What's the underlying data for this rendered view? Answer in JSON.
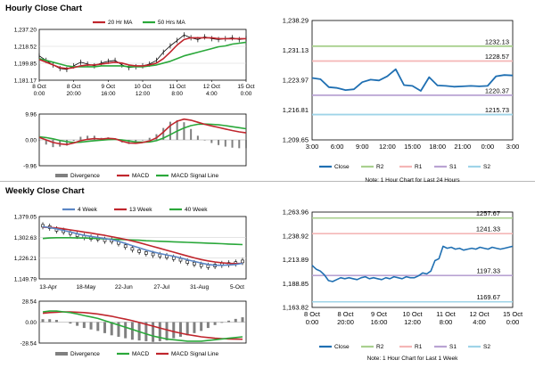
{
  "sections": {
    "hourly_title": "Hourly Close Chart",
    "weekly_title": "Weekly Close Chart"
  },
  "colors": {
    "ma_short": "#c0262d",
    "ma_long": "#2aa83a",
    "close": "#1f6fb2",
    "r2": "#a9d08e",
    "r1": "#f4b6b6",
    "s1": "#b9a3d3",
    "s2": "#9fd4e8",
    "divergence": "#808080",
    "wk_4": "#5b86c5",
    "grid": "#d4d4d4",
    "axis": "#000000"
  },
  "chart_data": [
    {
      "id": "hourly_price",
      "type": "line",
      "title": "Hourly Close Chart",
      "legend": [
        "20 Hr MA",
        "50 Hrs MA"
      ],
      "y_ticks": [
        "1,237.20",
        "1,218.52",
        "1,199.85",
        "1,181.17"
      ],
      "ylim": [
        1181.17,
        1237.2
      ],
      "x_labels": [
        [
          "8 Oct",
          "0:00"
        ],
        [
          "8 Oct",
          "20:00"
        ],
        [
          "9 Oct",
          "16:00"
        ],
        [
          "10 Oct",
          "12:00"
        ],
        [
          "11 Oct",
          "8:00"
        ],
        [
          "12 Oct",
          "4:00"
        ],
        [
          "15 Oct",
          "0:00"
        ]
      ],
      "x": [
        0,
        4,
        8,
        12,
        16,
        20,
        24,
        28,
        32,
        36,
        40,
        44,
        48,
        52,
        56,
        60,
        64,
        68,
        72,
        76,
        80,
        84,
        88,
        92,
        96,
        100,
        104,
        108,
        112,
        116,
        120
      ],
      "close": [
        1208,
        1203,
        1198,
        1194,
        1193,
        1197,
        1201,
        1199,
        1197,
        1200,
        1202,
        1203,
        1198,
        1195,
        1196,
        1197,
        1199,
        1203,
        1212,
        1219,
        1225,
        1231,
        1228,
        1226,
        1229,
        1227,
        1226,
        1227,
        1228,
        1226,
        1227
      ],
      "ma20": [
        1204,
        1201,
        1198,
        1195,
        1194,
        1195,
        1197,
        1198,
        1198,
        1199,
        1200,
        1201,
        1200,
        1198,
        1197,
        1197,
        1198,
        1200,
        1205,
        1212,
        1220,
        1226,
        1228,
        1228,
        1228,
        1228,
        1227,
        1227,
        1227,
        1227,
        1227
      ],
      "ma50": [
        1205,
        1203,
        1201,
        1199,
        1197,
        1196,
        1196,
        1196,
        1196,
        1197,
        1197,
        1197,
        1197,
        1196,
        1196,
        1196,
        1197,
        1198,
        1200,
        1202,
        1205,
        1208,
        1210,
        1212,
        1214,
        1216,
        1218,
        1219,
        1221,
        1222,
        1223
      ]
    },
    {
      "id": "hourly_macd",
      "type": "line",
      "legend": [
        "Divergence",
        "MACD",
        "MACD Signal Line"
      ],
      "y_ticks": [
        "9.96",
        "0.00",
        "-9.96"
      ],
      "ylim": [
        -9.96,
        9.96
      ],
      "x": [
        0,
        4,
        8,
        12,
        16,
        20,
        24,
        28,
        32,
        36,
        40,
        44,
        48,
        52,
        56,
        60,
        64,
        68,
        72,
        76,
        80,
        84,
        88,
        92,
        96,
        100,
        104,
        108,
        112,
        116,
        120
      ],
      "macd": [
        1,
        0,
        -1,
        -1.5,
        -1.8,
        -1.2,
        -0.3,
        0.2,
        0.5,
        0.3,
        0.6,
        0.4,
        -0.5,
        -1.2,
        -1.3,
        -1,
        -0.4,
        0.8,
        3,
        5.5,
        7.2,
        8,
        7.6,
        6.8,
        6,
        5.4,
        4.8,
        4.2,
        3.6,
        3.1,
        2.7
      ],
      "signal": [
        1.2,
        0.9,
        0.4,
        -0.2,
        -0.7,
        -1,
        -0.9,
        -0.6,
        -0.3,
        -0.1,
        0.1,
        0.2,
        0,
        -0.4,
        -0.8,
        -0.9,
        -0.8,
        -0.3,
        0.7,
        2,
        3.4,
        4.6,
        5.5,
        6,
        6.1,
        6,
        5.8,
        5.5,
        5.1,
        4.7,
        4.3
      ]
    },
    {
      "id": "hourly_pivots",
      "type": "line",
      "y_ticks": [
        "1,238.29",
        "1,231.13",
        "1,223.97",
        "1,216.81",
        "1,209.65"
      ],
      "ylim": [
        1209.65,
        1238.29
      ],
      "x_ticks": [
        "3:00",
        "6:00",
        "9:00",
        "12:00",
        "15:00",
        "18:00",
        "21:00",
        "0:00",
        "3:00"
      ],
      "levels": [
        {
          "name": "R2",
          "value": 1232.13,
          "label": "1232.13"
        },
        {
          "name": "R1",
          "value": 1228.57,
          "label": "1228.57"
        },
        {
          "name": "S1",
          "value": 1220.37,
          "label": "1220.37"
        },
        {
          "name": "S2",
          "value": 1215.73,
          "label": "1215.73"
        }
      ],
      "close": [
        1224.5,
        1224.2,
        1222.3,
        1222.1,
        1221.6,
        1221.8,
        1223.5,
        1224.1,
        1223.9,
        1224.9,
        1226.6,
        1222.8,
        1222.6,
        1221.4,
        1224.7,
        1222.7,
        1222.6,
        1222.4,
        1222.5,
        1222.6,
        1222.5,
        1222.6,
        1224.9,
        1225.2,
        1225.1
      ],
      "legend": [
        "Close",
        "R2",
        "R1",
        "S1",
        "S2"
      ],
      "note": "Note: 1 Hour Chart for Last 24 Hours"
    },
    {
      "id": "weekly_price",
      "type": "line",
      "title": "Weekly Close Chart",
      "legend": [
        "4 Week",
        "13 Week",
        "40 Week"
      ],
      "y_ticks": [
        "1,379.05",
        "1,302.63",
        "1,226.21",
        "1,149.79"
      ],
      "ylim": [
        1149.79,
        1379.05
      ],
      "x_ticks": [
        "13-Apr",
        "18-May",
        "22-Jun",
        "27-Jul",
        "31-Aug",
        "5-Oct"
      ],
      "close": [
        1345,
        1340,
        1330,
        1325,
        1318,
        1310,
        1305,
        1300,
        1298,
        1292,
        1290,
        1282,
        1270,
        1260,
        1252,
        1245,
        1240,
        1236,
        1232,
        1226,
        1220,
        1212,
        1206,
        1200,
        1196,
        1199,
        1203,
        1205,
        1208,
        1214
      ],
      "wk4": [
        1342,
        1338,
        1334,
        1328,
        1322,
        1316,
        1310,
        1306,
        1302,
        1298,
        1294,
        1288,
        1280,
        1272,
        1264,
        1256,
        1249,
        1243,
        1238,
        1233,
        1227,
        1220,
        1214,
        1208,
        1203,
        1200,
        1200,
        1201,
        1203,
        1207
      ],
      "wk13": [
        1340,
        1339,
        1337,
        1334,
        1330,
        1326,
        1322,
        1318,
        1314,
        1310,
        1305,
        1300,
        1295,
        1289,
        1283,
        1276,
        1269,
        1262,
        1255,
        1248,
        1241,
        1234,
        1227,
        1221,
        1216,
        1212,
        1209,
        1207,
        1206,
        1207
      ],
      "wk40": [
        1298,
        1300,
        1301,
        1301,
        1301,
        1300,
        1300,
        1299,
        1298,
        1297,
        1296,
        1295,
        1294,
        1293,
        1292,
        1290,
        1289,
        1288,
        1287,
        1286,
        1285,
        1284,
        1283,
        1282,
        1281,
        1280,
        1279,
        1278,
        1277,
        1276
      ]
    },
    {
      "id": "weekly_macd",
      "type": "line",
      "legend": [
        "Divergence",
        "MACD",
        "MACD Signal Line"
      ],
      "y_ticks": [
        "28.54",
        "0.00",
        "-28.54"
      ],
      "ylim": [
        -28.54,
        28.54
      ],
      "macd": [
        14,
        15,
        15,
        14,
        13,
        11,
        9,
        7,
        5,
        2,
        -1,
        -4,
        -7,
        -10,
        -13,
        -16,
        -19,
        -21,
        -23,
        -24,
        -25,
        -26,
        -26,
        -26,
        -25,
        -24,
        -23,
        -22,
        -21,
        -20
      ],
      "signal": [
        12,
        13,
        13.5,
        14,
        14,
        13.5,
        13,
        12,
        11,
        9.5,
        8,
        6,
        4,
        2,
        -0.5,
        -3,
        -5.5,
        -8,
        -10.5,
        -13,
        -15,
        -17,
        -18.5,
        -20,
        -21,
        -22,
        -22.5,
        -23,
        -23.2,
        -23.3
      ]
    },
    {
      "id": "weekly_pivots",
      "type": "line",
      "y_ticks": [
        "1,263.96",
        "1,238.92",
        "1,213.89",
        "1,188.85",
        "1,163.82"
      ],
      "ylim": [
        1163.82,
        1263.96
      ],
      "x_labels": [
        [
          "8 Oct",
          "0:00"
        ],
        [
          "8 Oct",
          "20:00"
        ],
        [
          "9 Oct",
          "16:00"
        ],
        [
          "10 Oct",
          "12:00"
        ],
        [
          "11 Oct",
          "8:00"
        ],
        [
          "12 Oct",
          "4:00"
        ],
        [
          "15 Oct",
          "0:00"
        ]
      ],
      "levels": [
        {
          "name": "R2",
          "value": 1257.67,
          "label": "1257.67"
        },
        {
          "name": "R1",
          "value": 1241.33,
          "label": "1241.33"
        },
        {
          "name": "S1",
          "value": 1197.33,
          "label": "1197.33"
        },
        {
          "name": "S2",
          "value": 1169.67,
          "label": "1169.67"
        }
      ],
      "close": [
        1208,
        1204,
        1202,
        1198,
        1192,
        1191,
        1193,
        1195,
        1194,
        1195,
        1194,
        1193,
        1195,
        1196,
        1194,
        1195,
        1194,
        1193,
        1195,
        1194,
        1196,
        1195,
        1194,
        1196,
        1195,
        1195,
        1197,
        1200,
        1199,
        1202,
        1213,
        1215,
        1228,
        1226,
        1227,
        1225,
        1226,
        1224,
        1225,
        1226,
        1225,
        1227,
        1226,
        1225,
        1227,
        1226,
        1225,
        1226,
        1227,
        1228
      ],
      "legend": [
        "Close",
        "R2",
        "R1",
        "S1",
        "S2"
      ],
      "note": "Note: 1 Hour Chart for Last 1 Week"
    }
  ]
}
